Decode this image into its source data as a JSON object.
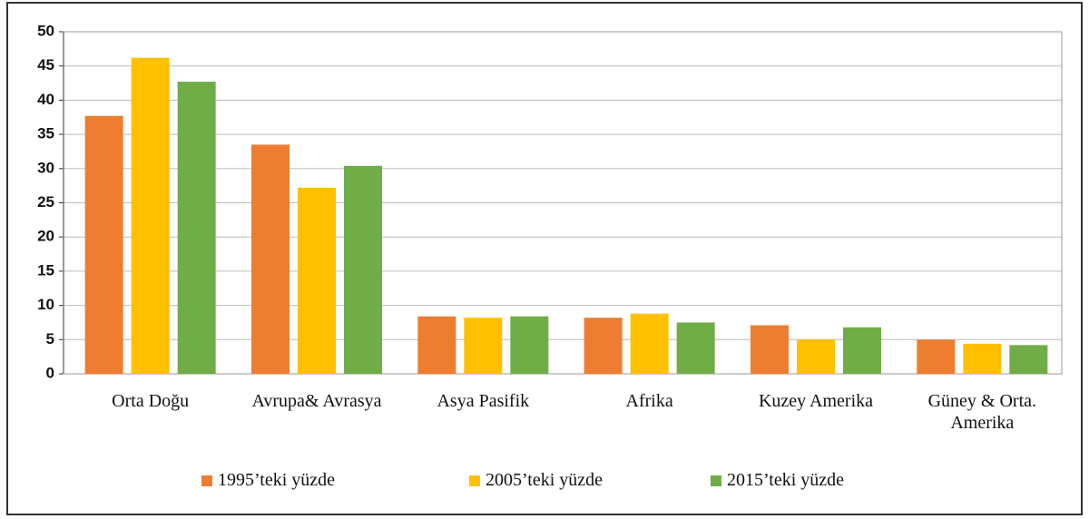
{
  "chart_data": {
    "type": "bar",
    "categories": [
      "Orta Doğu",
      "Avrupa& Avrasya",
      "Asya Pasifik",
      "Afrika",
      "Kuzey Amerika",
      "Güney & Orta. Amerika"
    ],
    "series": [
      {
        "name": "1995’teki yüzde",
        "color": "#ed7d31",
        "values": [
          37.7,
          33.5,
          8.4,
          8.2,
          7.1,
          5.0
        ]
      },
      {
        "name": "2005’teki yüzde",
        "color": "#ffc000",
        "values": [
          46.2,
          27.2,
          8.2,
          8.8,
          5.0,
          4.4
        ]
      },
      {
        "name": "2015’teki yüzde",
        "color": "#70ad47",
        "values": [
          42.7,
          30.4,
          8.4,
          7.5,
          6.8,
          4.2
        ]
      }
    ],
    "ylim": [
      0,
      50
    ],
    "yticks": [
      0,
      5,
      10,
      15,
      20,
      25,
      30,
      35,
      40,
      45,
      50
    ],
    "grid": true,
    "legend": "bottom"
  }
}
